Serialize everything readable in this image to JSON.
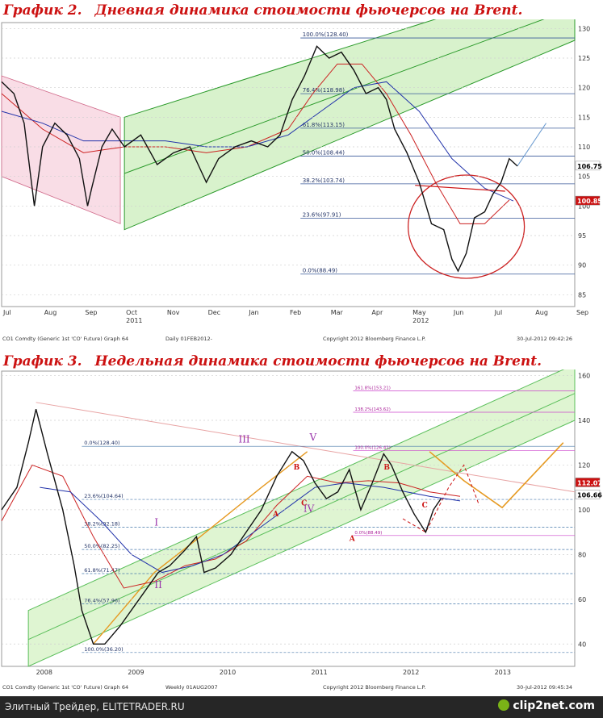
{
  "chart_data": [
    {
      "type": "line",
      "title_number": "График 2.",
      "title_text": "Дневная динамика стоимости фьючерсов на Brent.",
      "x_labels": [
        "Jul",
        "Aug",
        "Sep",
        "Oct",
        "Nov",
        "Dec",
        "Jan",
        "Feb",
        "Mar",
        "Apr",
        "May",
        "Jun",
        "Jul",
        "Aug",
        "Sep"
      ],
      "year_labels": [
        {
          "label": "2011",
          "month": 3
        },
        {
          "label": "2012",
          "month": 10
        }
      ],
      "y_ticks": [
        85,
        90,
        95,
        100,
        105,
        110,
        115,
        120,
        125,
        130
      ],
      "ylim": [
        83,
        131
      ],
      "price_labels": [
        {
          "value": 106.75,
          "text": "106.75",
          "color": "#ffffff",
          "text_color": "#000000"
        },
        {
          "value": 100.85,
          "text": "100.85",
          "color": "#cc1111",
          "text_color": "#ffffff"
        }
      ],
      "fib_levels": [
        {
          "value": 128.4,
          "label": "100.0%(128.40)"
        },
        {
          "value": 118.98,
          "label": "76.4%(118.98)"
        },
        {
          "value": 113.15,
          "label": "61.8%(113.15)"
        },
        {
          "value": 108.44,
          "label": "50.0%(108.44)"
        },
        {
          "value": 103.74,
          "label": "38.2%(103.74)"
        },
        {
          "value": 97.91,
          "label": "23.6%(97.91)"
        },
        {
          "value": 88.49,
          "label": "0.0%(88.49)"
        }
      ],
      "price_path": [
        [
          0,
          121
        ],
        [
          0.3,
          119
        ],
        [
          0.55,
          114
        ],
        [
          0.8,
          100
        ],
        [
          1.0,
          110
        ],
        [
          1.3,
          114
        ],
        [
          1.6,
          112
        ],
        [
          1.9,
          108
        ],
        [
          2.1,
          100
        ],
        [
          2.2,
          103
        ],
        [
          2.45,
          110
        ],
        [
          2.7,
          113
        ],
        [
          3.0,
          110
        ],
        [
          3.4,
          112
        ],
        [
          3.8,
          107
        ],
        [
          4.2,
          109
        ],
        [
          4.6,
          110
        ],
        [
          5.0,
          104
        ],
        [
          5.3,
          108
        ],
        [
          5.7,
          110
        ],
        [
          6.1,
          111
        ],
        [
          6.5,
          110
        ],
        [
          6.8,
          112
        ],
        [
          7.1,
          118
        ],
        [
          7.4,
          122
        ],
        [
          7.7,
          127
        ],
        [
          8.0,
          125
        ],
        [
          8.3,
          126
        ],
        [
          8.6,
          123
        ],
        [
          8.9,
          119
        ],
        [
          9.2,
          120
        ],
        [
          9.4,
          118
        ],
        [
          9.6,
          113
        ],
        [
          9.9,
          109
        ],
        [
          10.2,
          104
        ],
        [
          10.5,
          97
        ],
        [
          10.8,
          96
        ],
        [
          11.0,
          91
        ],
        [
          11.15,
          89
        ],
        [
          11.35,
          92
        ],
        [
          11.55,
          98
        ],
        [
          11.8,
          99
        ],
        [
          12.0,
          102
        ],
        [
          12.2,
          104
        ],
        [
          12.4,
          108
        ],
        [
          12.6,
          106.75
        ]
      ],
      "footer_left": "CO1 Comdty (Generic 1st 'CO' Future) Graph 64",
      "footer_mid": "Daily 01FEB2012-",
      "footer_copy": "Copyright 2012 Bloomberg Finance L.P.",
      "footer_right": "30-Jul-2012 09:42:26"
    },
    {
      "type": "line",
      "title_number": "График 3.",
      "title_text": "Недельная динамика стоимости фьючерсов на Brent.",
      "x_labels": [
        "2008",
        "2009",
        "2010",
        "2011",
        "2012",
        "2013"
      ],
      "y_ticks": [
        40,
        60,
        80,
        100,
        120,
        140,
        160
      ],
      "ylim": [
        30,
        162
      ],
      "price_labels": [
        {
          "value": 112.07,
          "text": "112.07",
          "color": "#cc1111",
          "text_color": "#ffffff"
        },
        {
          "value": 106.66,
          "text": "106.66",
          "color": "#ffffff",
          "text_color": "#000000"
        }
      ],
      "fib_levels_lower": [
        {
          "value": 128.4,
          "label": "0.0%(128.40)"
        },
        {
          "value": 104.64,
          "label": "23.6%(104.64)"
        },
        {
          "value": 92.18,
          "label": "38.2%(92.18)"
        },
        {
          "value": 82.25,
          "label": "50.0%(82.25)"
        },
        {
          "value": 71.47,
          "label": "61.8%(71.47)"
        },
        {
          "value": 57.96,
          "label": "76.4%(57.96)"
        },
        {
          "value": 36.2,
          "label": "100.0%(36.20)"
        }
      ],
      "fib_levels_upper": [
        {
          "value": 153.21,
          "label": "161.8%(153.21)"
        },
        {
          "value": 143.62,
          "label": "138.2%(143.62)"
        },
        {
          "value": 126.41,
          "label": "100.0%(126.41)"
        },
        {
          "value": 88.49,
          "label": "0.0%(88.49)"
        }
      ],
      "wave_labels": [
        {
          "text": "I",
          "x": 2.0,
          "y": 93,
          "color": "#9933aa"
        },
        {
          "text": "II",
          "x": 2.0,
          "y": 65,
          "color": "#9933aa"
        },
        {
          "text": "III",
          "x": 3.1,
          "y": 130,
          "color": "#9933aa"
        },
        {
          "text": "IV",
          "x": 3.95,
          "y": 99,
          "color": "#9933aa"
        },
        {
          "text": "V",
          "x": 4.03,
          "y": 131,
          "color": "#9933aa"
        },
        {
          "text": "A",
          "x": 3.55,
          "y": 97,
          "color": "#cc1111"
        },
        {
          "text": "B",
          "x": 3.82,
          "y": 118,
          "color": "#cc1111"
        },
        {
          "text": "C",
          "x": 3.92,
          "y": 102,
          "color": "#cc1111"
        },
        {
          "text": "A",
          "x": 4.55,
          "y": 86,
          "color": "#cc1111"
        },
        {
          "text": "B",
          "x": 5.0,
          "y": 118,
          "color": "#cc1111"
        },
        {
          "text": "C",
          "x": 5.5,
          "y": 101,
          "color": "#cc1111"
        }
      ],
      "price_path": [
        [
          0,
          100
        ],
        [
          0.2,
          110
        ],
        [
          0.35,
          130
        ],
        [
          0.45,
          145
        ],
        [
          0.6,
          125
        ],
        [
          0.8,
          100
        ],
        [
          0.95,
          75
        ],
        [
          1.05,
          55
        ],
        [
          1.2,
          40
        ],
        [
          1.35,
          40
        ],
        [
          1.55,
          48
        ],
        [
          1.8,
          60
        ],
        [
          2.05,
          72
        ],
        [
          2.2,
          75
        ],
        [
          2.4,
          82
        ],
        [
          2.55,
          88
        ],
        [
          2.65,
          72
        ],
        [
          2.8,
          74
        ],
        [
          3.0,
          80
        ],
        [
          3.2,
          90
        ],
        [
          3.4,
          100
        ],
        [
          3.6,
          115
        ],
        [
          3.8,
          126
        ],
        [
          3.95,
          122
        ],
        [
          4.1,
          112
        ],
        [
          4.25,
          105
        ],
        [
          4.4,
          108
        ],
        [
          4.55,
          118
        ],
        [
          4.7,
          100
        ],
        [
          4.85,
          112
        ],
        [
          5.0,
          125
        ],
        [
          5.1,
          120
        ],
        [
          5.25,
          108
        ],
        [
          5.4,
          98
        ],
        [
          5.55,
          90
        ],
        [
          5.65,
          100
        ],
        [
          5.75,
          105
        ]
      ],
      "forecast_path": [
        [
          5.6,
          126
        ],
        [
          6.05,
          113
        ],
        [
          6.55,
          101
        ],
        [
          7.35,
          130
        ]
      ],
      "footer_left": "CO1 Comdty (Generic 1st 'CO' Future) Graph 64",
      "footer_mid": "Weekly 01AUG2007",
      "footer_copy": "Copyright 2012 Bloomberg Finance L.P.",
      "footer_right": "30-Jul-2012 09:45:34"
    }
  ],
  "footer": {
    "credit": "Элитный Трейдер, ELITETRADER.RU",
    "brand": "clip2net.com"
  }
}
